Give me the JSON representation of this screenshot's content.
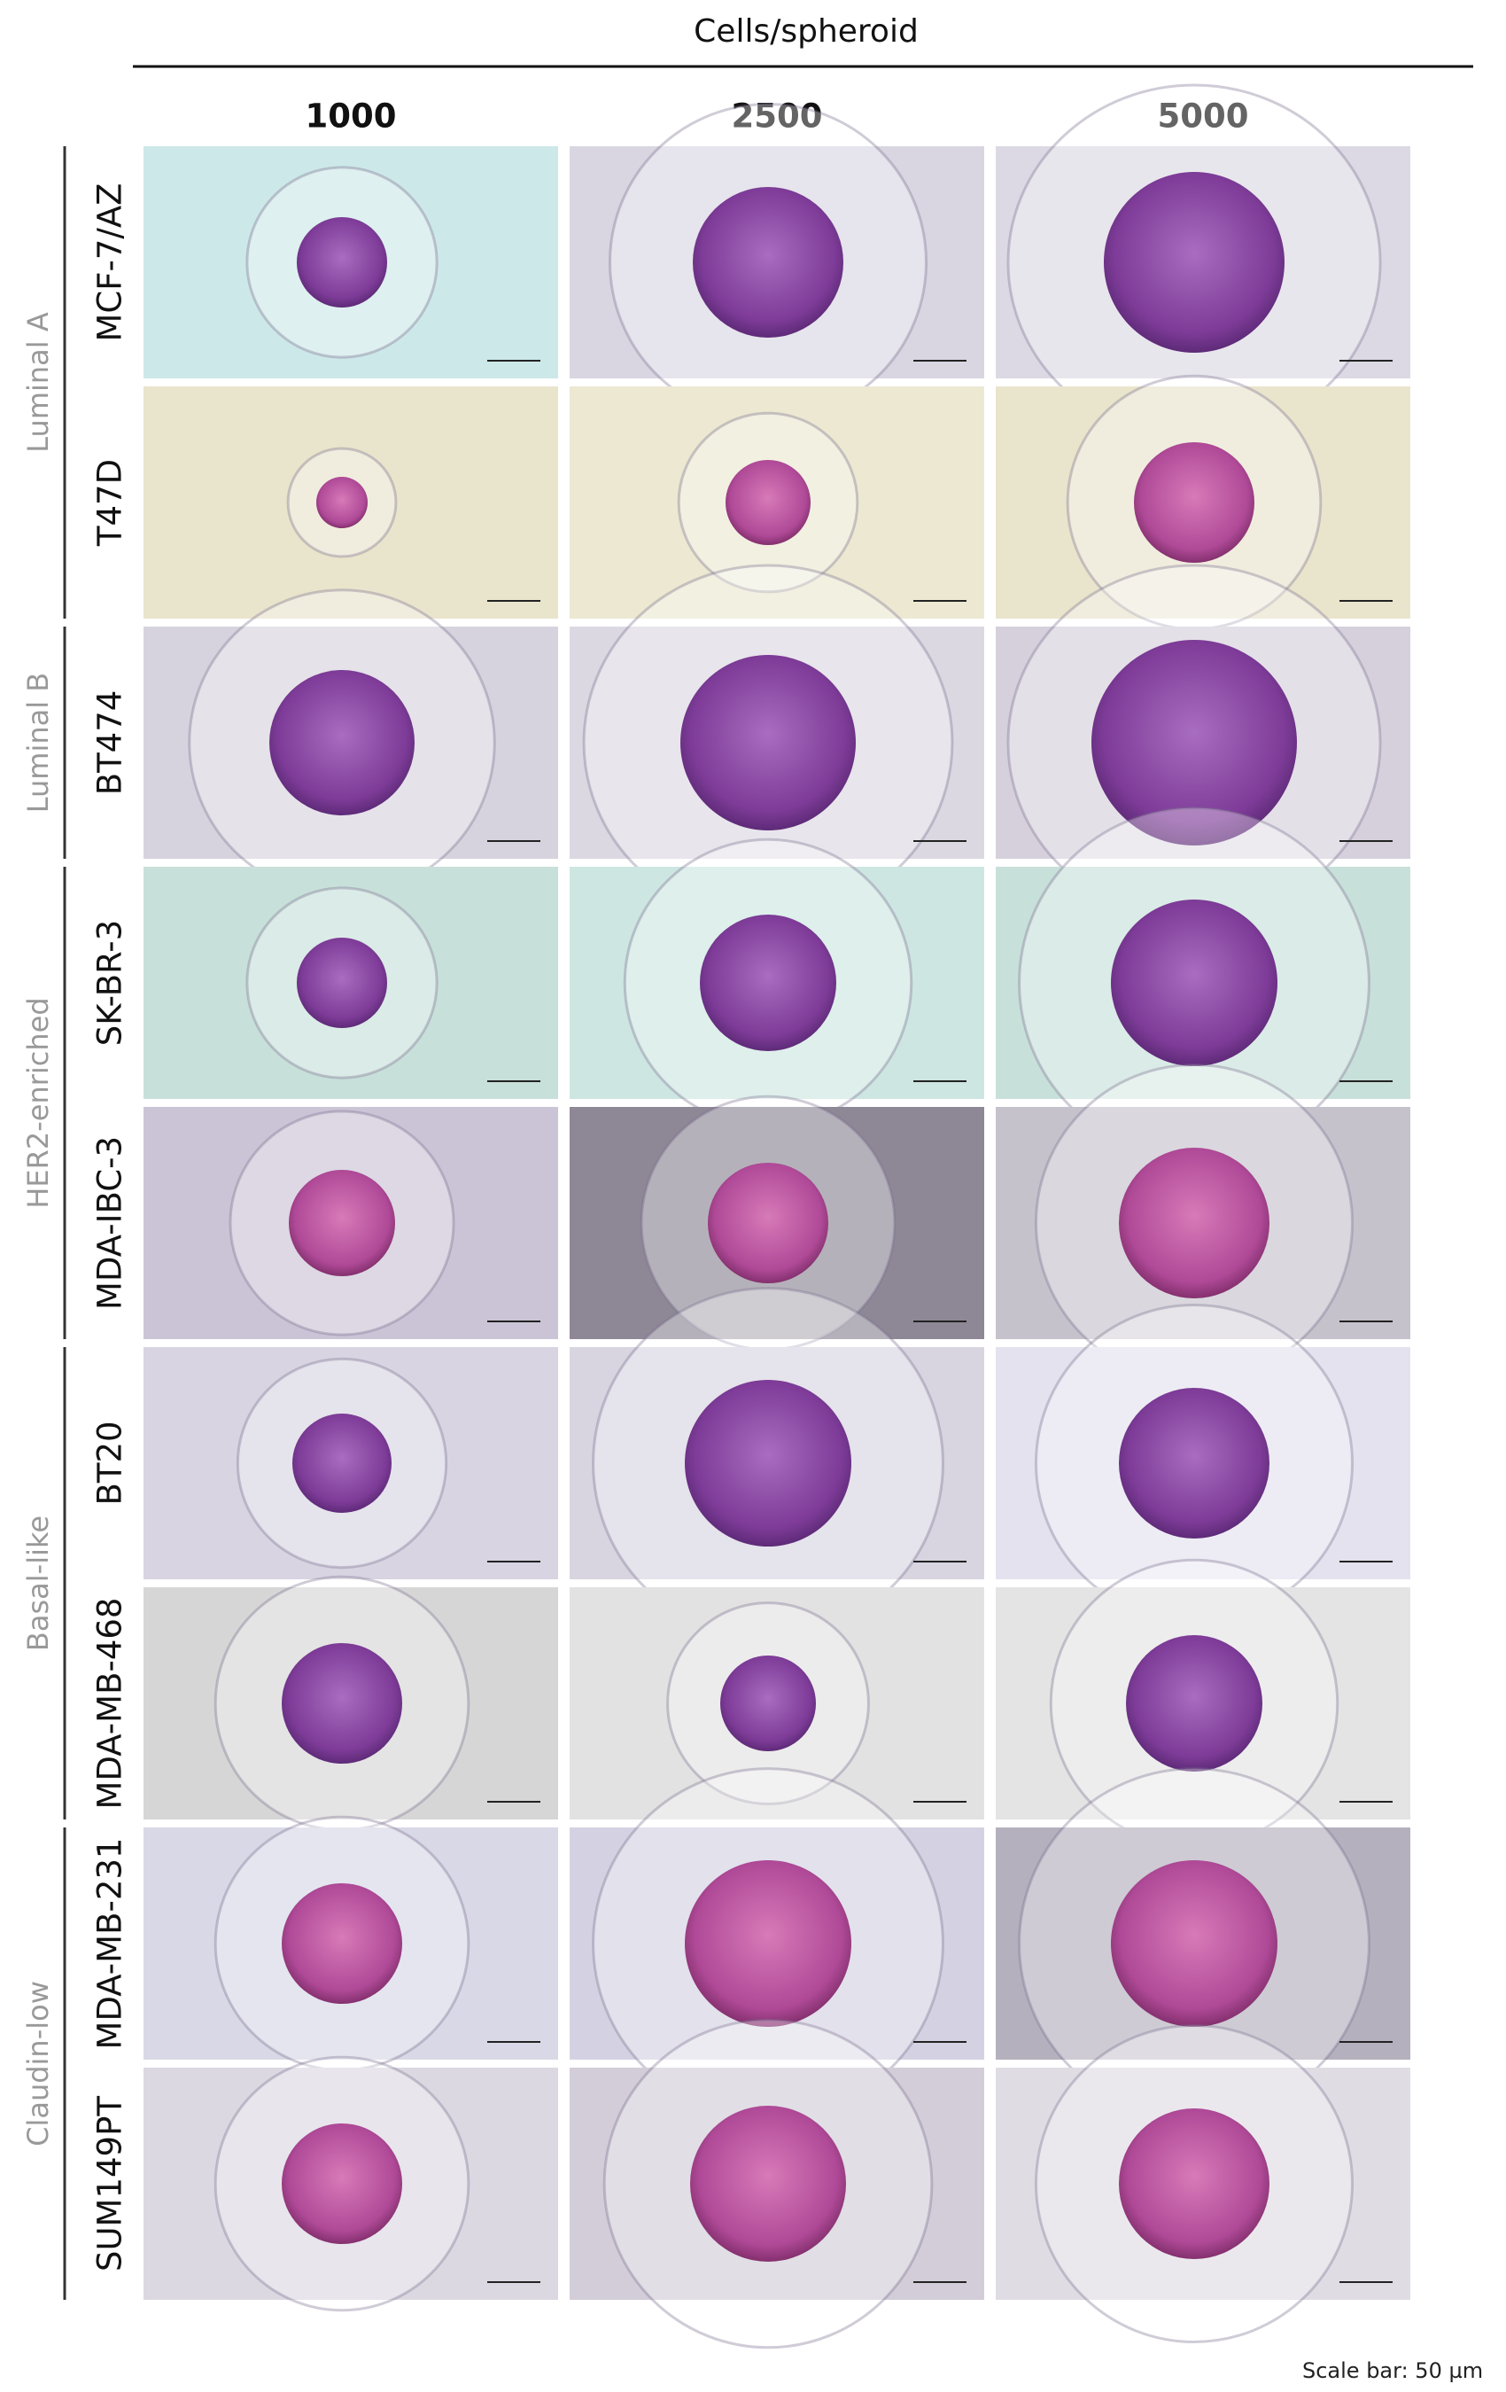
{
  "header": {
    "title": "Cells/spheroid",
    "columns": [
      "1000",
      "2500",
      "5000"
    ]
  },
  "groups": [
    {
      "label": "Luminal A",
      "rows": [
        "MCF-7/AZ",
        "T47D"
      ]
    },
    {
      "label": "Luminal B",
      "rows": [
        "BT474"
      ]
    },
    {
      "label": "HER2-enriched",
      "rows": [
        "SK-BR-3",
        "MDA-IBC-3"
      ]
    },
    {
      "label": "Basal-like",
      "rows": [
        "BT20",
        "MDA-MB-468"
      ]
    },
    {
      "label": "Claudin-low",
      "rows": [
        "MDA-MB-231",
        "SUM149PT"
      ]
    }
  ],
  "footer": {
    "scale_bar": "Scale bar: 50 µm"
  }
}
